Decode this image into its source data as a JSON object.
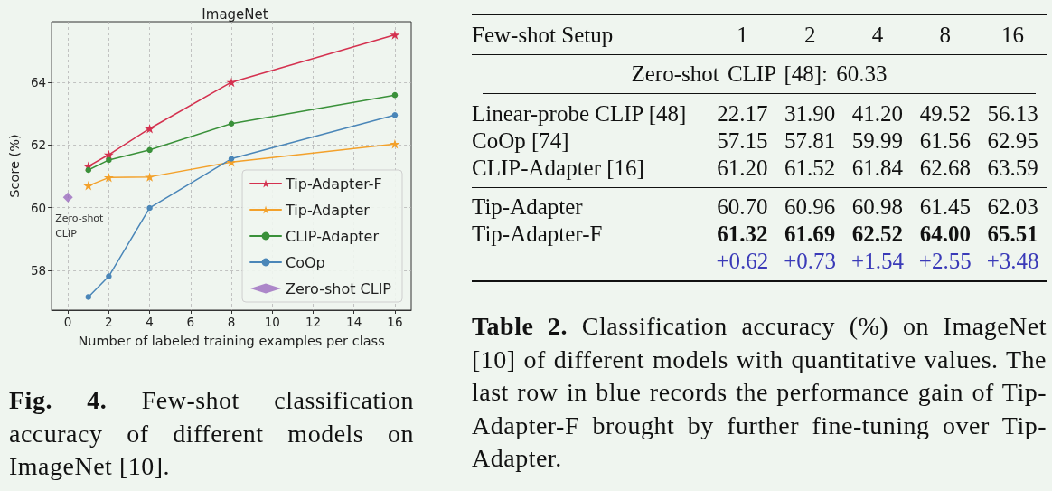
{
  "chart_data": [
    {
      "type": "line",
      "title": "ImageNet",
      "xlabel": "Number of labeled training examples per class",
      "ylabel": "Score (%)",
      "x": [
        1,
        2,
        4,
        8,
        16
      ],
      "xlim": [
        -0.8,
        16.8
      ],
      "ylim": [
        56.73,
        65.93
      ],
      "xticks": [
        0,
        2,
        4,
        6,
        8,
        10,
        12,
        14,
        16
      ],
      "yticks": [
        58,
        60,
        62,
        64
      ],
      "grid": true,
      "legend": "bottom right",
      "series": [
        {
          "name": "Tip-Adapter-F",
          "color": "#d4314f",
          "marker": "star",
          "values": [
            61.32,
            61.69,
            62.52,
            64.0,
            65.51
          ]
        },
        {
          "name": "Tip-Adapter",
          "color": "#f3a12b",
          "marker": "star",
          "values": [
            60.7,
            60.96,
            60.98,
            61.45,
            62.03
          ]
        },
        {
          "name": "CLIP-Adapter",
          "color": "#3a913a",
          "marker": "circle",
          "values": [
            61.2,
            61.52,
            61.84,
            62.68,
            63.59
          ]
        },
        {
          "name": "CoOp",
          "color": "#4a86b8",
          "marker": "circle",
          "values": [
            57.15,
            57.81,
            59.99,
            61.56,
            62.95
          ]
        },
        {
          "name": "Zero-shot CLIP",
          "type": "scatter",
          "color": "#9b6bbf",
          "marker": "diamond",
          "x": [
            0
          ],
          "values": [
            60.33
          ]
        }
      ],
      "annotations": [
        {
          "text": "Zero-shot CLIP",
          "x": 0,
          "y": 60.33
        },
        "Fig. 4. Few-shot classification accuracy of different models on ImageNet [10]."
      ]
    },
    {
      "type": "other",
      "xlabel": "Few-shot Setup",
      "categories": [
        "1",
        "2",
        "4",
        "8",
        "16"
      ],
      "series": [
        {
          "name": "Linear-probe CLIP [48]",
          "color": "#111111",
          "values": [
            22.17,
            31.9,
            41.2,
            49.52,
            56.13
          ],
          "value_labels": [
            "22.17",
            "31.90",
            "41.20",
            "49.52",
            "56.13"
          ]
        },
        {
          "name": "CoOp [74]",
          "color": "#111111",
          "values": [
            57.15,
            57.81,
            59.99,
            61.56,
            62.95
          ],
          "value_labels": [
            "57.15",
            "57.81",
            "59.99",
            "61.56",
            "62.95"
          ]
        },
        {
          "name": "CLIP-Adapter [16]",
          "color": "#111111",
          "values": [
            61.2,
            61.52,
            61.84,
            62.68,
            63.59
          ],
          "value_labels": [
            "61.20",
            "61.52",
            "61.84",
            "62.68",
            "63.59"
          ]
        },
        {
          "name": "Tip-Adapter",
          "color": "#111111",
          "values": [
            60.7,
            60.96,
            60.98,
            61.45,
            62.03
          ],
          "value_labels": [
            "60.70",
            "60.96",
            "60.98",
            "61.45",
            "62.03"
          ]
        },
        {
          "name": "Tip-Adapter-F",
          "color": "#111111",
          "values": [
            61.32,
            61.69,
            62.52,
            64.0,
            65.51
          ],
          "value_labels": [
            "61.32",
            "61.69",
            "62.52",
            "64.00",
            "65.51"
          ]
        },
        {
          "name": null,
          "color": "#3a3ab8",
          "values": [
            0.62,
            0.73,
            1.54,
            2.55,
            3.48
          ],
          "value_labels": [
            "+0.62",
            "+0.73",
            "+1.54",
            "+2.55",
            "+3.48"
          ]
        }
      ],
      "annotations": [
        "Zero-shot CLIP [48]: 60.33",
        "Table 2. Classification accuracy (%) on ImageNet [10] of different models with quantitative values. The last row in blue records the performance gain of Tip-Adapter-F brought by further fine-tuning over Tip-Adapter."
      ]
    }
  ]
}
